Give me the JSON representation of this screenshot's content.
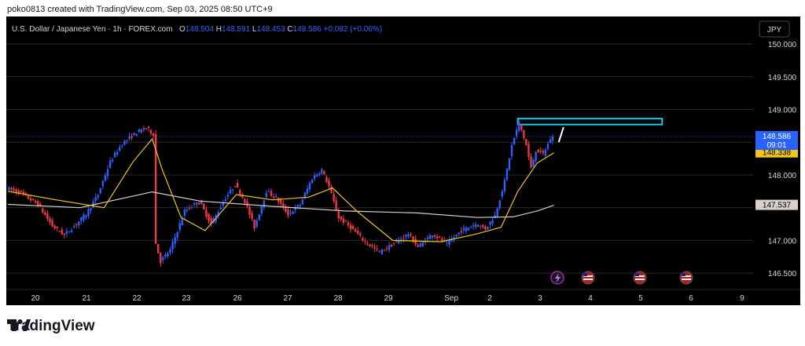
{
  "attribution": "poko0813 created with TradingView.com, Sep 03, 2025 08:50 UTC+9",
  "brand": "TradingView",
  "colors": {
    "up": "#2962ff",
    "down": "#f23645",
    "ma_fast": "#f0c419",
    "ma_slow": "#d9d0c7",
    "box": "#1ec8e6",
    "price_tag": "#2962ff",
    "ma_tag": "#f0c419",
    "ma2_tag": "#d9d0c7"
  },
  "chart_data": {
    "type": "candlestick",
    "symbol": "U.S. Dollar / Japanese Yen",
    "interval": "1h",
    "exchange": "FOREX.com",
    "ohlc_labels": {
      "o": "O",
      "h": "H",
      "l": "L",
      "c": "C"
    },
    "ohlc": {
      "open": "148.504",
      "high": "148.591",
      "low": "148.453",
      "close": "148.586",
      "change": "+0.082 (+0.06%)"
    },
    "currency": "JPY",
    "ylim": [
      146.25,
      150.3
    ],
    "y_ticks": [
      "150.000",
      "149.500",
      "149.000",
      "148.000",
      "147.000",
      "146.500"
    ],
    "x_ticks": [
      "20",
      "21",
      "22",
      "23",
      "26",
      "27",
      "28",
      "29",
      "Sep",
      "2",
      "3",
      "4",
      "5",
      "6",
      "9"
    ],
    "key_path": [
      [
        0,
        147.8
      ],
      [
        6,
        147.72
      ],
      [
        13,
        147.55
      ],
      [
        19,
        147.22
      ],
      [
        24,
        147.08
      ],
      [
        28,
        147.22
      ],
      [
        33,
        147.4
      ],
      [
        38,
        147.7
      ],
      [
        43,
        148.2
      ],
      [
        48,
        148.48
      ],
      [
        54,
        148.65
      ],
      [
        58,
        148.72
      ],
      [
        61,
        148.62
      ],
      [
        62,
        146.95
      ],
      [
        64,
        146.68
      ],
      [
        68,
        146.85
      ],
      [
        74,
        147.45
      ],
      [
        80,
        147.6
      ],
      [
        85,
        147.25
      ],
      [
        91,
        147.65
      ],
      [
        95,
        147.85
      ],
      [
        99,
        147.6
      ],
      [
        103,
        147.2
      ],
      [
        108,
        147.75
      ],
      [
        112,
        147.65
      ],
      [
        117,
        147.4
      ],
      [
        122,
        147.55
      ],
      [
        127,
        147.95
      ],
      [
        131,
        148.08
      ],
      [
        134,
        147.82
      ],
      [
        138,
        147.35
      ],
      [
        143,
        147.2
      ],
      [
        149,
        146.98
      ],
      [
        155,
        146.82
      ],
      [
        161,
        146.95
      ],
      [
        167,
        147.1
      ],
      [
        171,
        146.9
      ],
      [
        177,
        147.1
      ],
      [
        183,
        146.95
      ],
      [
        189,
        147.15
      ],
      [
        195,
        147.25
      ],
      [
        199,
        147.18
      ],
      [
        203,
        147.38
      ],
      [
        207,
        147.9
      ],
      [
        210,
        148.45
      ],
      [
        213,
        148.8
      ],
      [
        216,
        148.45
      ],
      [
        218,
        148.1
      ],
      [
        220,
        148.38
      ],
      [
        223,
        148.32
      ],
      [
        226,
        148.55
      ],
      [
        227,
        148.586
      ]
    ],
    "ma_fast": {
      "value": "148.338",
      "points": [
        [
          0,
          147.75
        ],
        [
          20,
          147.62
        ],
        [
          40,
          147.5
        ],
        [
          52,
          148.2
        ],
        [
          60,
          148.55
        ],
        [
          64,
          148.1
        ],
        [
          72,
          147.35
        ],
        [
          82,
          147.15
        ],
        [
          95,
          147.7
        ],
        [
          110,
          147.62
        ],
        [
          125,
          147.66
        ],
        [
          135,
          147.8
        ],
        [
          145,
          147.45
        ],
        [
          160,
          147.0
        ],
        [
          180,
          146.98
        ],
        [
          195,
          147.1
        ],
        [
          205,
          147.2
        ],
        [
          212,
          147.75
        ],
        [
          220,
          148.18
        ],
        [
          227,
          148.338
        ]
      ]
    },
    "ma_slow": {
      "value": "147.537",
      "points": [
        [
          0,
          147.55
        ],
        [
          30,
          147.5
        ],
        [
          60,
          147.74
        ],
        [
          80,
          147.6
        ],
        [
          110,
          147.52
        ],
        [
          140,
          147.45
        ],
        [
          170,
          147.42
        ],
        [
          195,
          147.35
        ],
        [
          210,
          147.36
        ],
        [
          220,
          147.45
        ],
        [
          227,
          147.537
        ]
      ]
    },
    "last_price": "148.586",
    "countdown": "09:01",
    "zone": {
      "from_bar": 212,
      "to_bar": 272,
      "low": 148.77,
      "high": 148.86
    }
  }
}
